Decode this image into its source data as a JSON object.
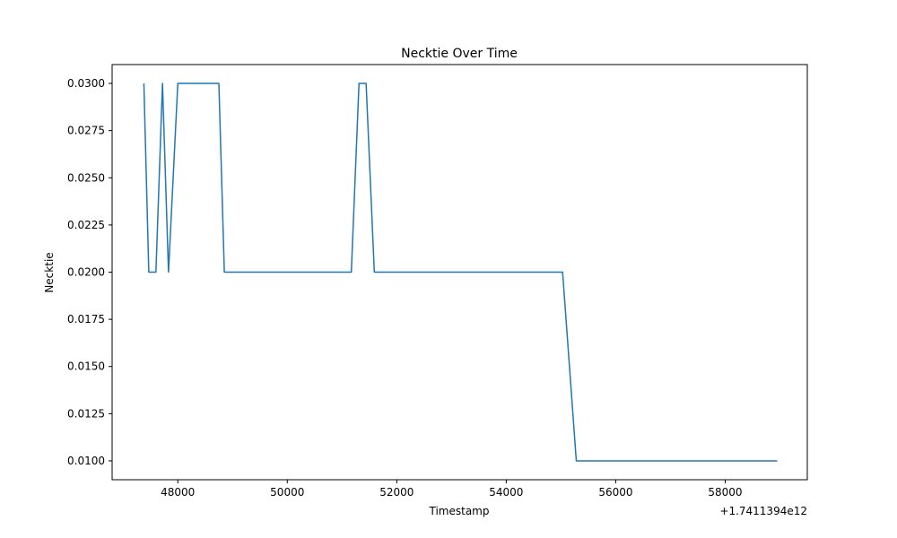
{
  "chart_data": {
    "type": "line",
    "title": "Necktie Over Time",
    "xlabel": "Timestamp",
    "ylabel": "Necktie",
    "x_offset_label": "+1.7411394e12",
    "x_tick_values": [
      48000,
      50000,
      52000,
      54000,
      56000,
      58000
    ],
    "x_tick_labels": [
      "48000",
      "50000",
      "52000",
      "54000",
      "56000",
      "58000"
    ],
    "y_tick_values": [
      0.01,
      0.0125,
      0.015,
      0.0175,
      0.02,
      0.0225,
      0.025,
      0.0275,
      0.03
    ],
    "y_tick_labels": [
      "0.0100",
      "0.0125",
      "0.0150",
      "0.0175",
      "0.0200",
      "0.0225",
      "0.0250",
      "0.0275",
      "0.0300"
    ],
    "xlim": [
      46800,
      59500
    ],
    "ylim": [
      0.009,
      0.031
    ],
    "grid": false,
    "series": [
      {
        "color": "#1f77b4",
        "x": [
          47380,
          47470,
          47600,
          47720,
          47830,
          48000,
          48750,
          48850,
          51170,
          51310,
          51440,
          51590,
          55030,
          55280,
          58950
        ],
        "y": [
          0.03,
          0.02,
          0.02,
          0.03,
          0.02,
          0.03,
          0.03,
          0.02,
          0.02,
          0.03,
          0.03,
          0.02,
          0.02,
          0.01,
          0.01
        ]
      }
    ]
  }
}
